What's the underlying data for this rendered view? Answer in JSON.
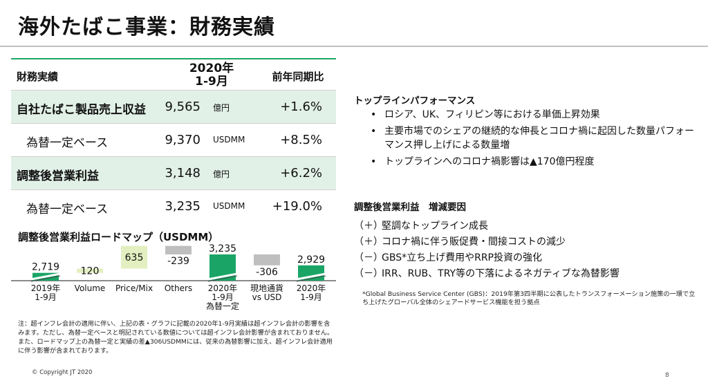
{
  "title": "海外たばこ事業：財務実績",
  "table": {
    "header": {
      "label": "財務実績",
      "period_line1": "2020年",
      "period_line2": "1-9月",
      "yoy": "前年同期比"
    },
    "rows": [
      {
        "label": "自社たばこ製品売上収益",
        "value": "9,565",
        "unit": "億円",
        "yoy": "+1.6%"
      },
      {
        "label": "為替一定ベース",
        "value": "9,370",
        "unit": "USDMM",
        "yoy": "+8.5%"
      },
      {
        "label": "調整後営業利益",
        "value": "3,148",
        "unit": "億円",
        "yoy": "+6.2%"
      },
      {
        "label": "為替一定ベース",
        "value": "3,235",
        "unit": "USDMM",
        "yoy": "+19.0%"
      }
    ]
  },
  "roadmap": {
    "title": "調整後営業利益ロードマップ（USDMM）",
    "colors": {
      "total": "#1aa566",
      "increase": "#e3efc0",
      "decrease": "#bfbfbf"
    }
  },
  "chart_data": {
    "type": "bar",
    "categories": [
      "2019年 1-9月",
      "Volume",
      "Price/Mix",
      "Others",
      "2020年 1-9月 為替一定",
      "現地通貨 vs USD",
      "2020年 1-9月"
    ],
    "category_lines": [
      [
        "2019年",
        "1-9月"
      ],
      [
        "Volume"
      ],
      [
        "Price/Mix"
      ],
      [
        "Others"
      ],
      [
        "2020年",
        "1-9月",
        "為替一定"
      ],
      [
        "現地通貨",
        "vs USD"
      ],
      [
        "2020年",
        "1-9月"
      ]
    ],
    "values": [
      2719,
      120,
      635,
      -239,
      3235,
      -306,
      2929
    ],
    "value_labels": [
      "2,719",
      "120",
      "635",
      "-239",
      "3,235",
      "-306",
      "2,929"
    ],
    "kinds": [
      "total",
      "increase",
      "increase",
      "decrease",
      "total",
      "decrease",
      "total"
    ],
    "title": "調整後営業利益ロードマップ（USDMM）"
  },
  "notes": [
    "注：超インフレ会計の適用に伴い、上記の表・グラフに記載の2020年1-9月実績は超インフレ会計の影響を含みます。ただし、為替一定ベースと明記されている数値については超インフレ会計影響が含まれておりません。",
    "また、ロードマップ上の為替一定と実績の差▲306USDMMには、従来の為替影響に加え、超インフレ会計適用に伴う影響が含まれております。"
  ],
  "copyright": "© Copyright JT 2020",
  "page_number": "8",
  "topline": {
    "heading": "トップラインパフォーマンス",
    "bullets": [
      "ロシア、UK、フィリピン等における単価上昇効果",
      "主要市場でのシェアの継続的な伸長とコロナ禍に起因した数量パフォーマンス押し上げによる数量増",
      "トップラインへのコロナ禍影響は▲170億円程度"
    ]
  },
  "factors": {
    "heading": "調整後営業利益　増減要因",
    "items": [
      {
        "sign": "（＋）",
        "text": "堅調なトップライン成長"
      },
      {
        "sign": "（＋）",
        "text": "コロナ禍に伴う販促費・間接コストの減少"
      },
      {
        "sign": "（－）",
        "text": "GBS*立ち上げ費用やRRP投資の強化"
      },
      {
        "sign": "（－）",
        "text": "IRR、RUB、TRY等の下落によるネガティブな為替影響"
      }
    ],
    "footnote": "*Global Business Service Center (GBS)：2019年第3四半期に公表したトランスフォーメーション施策の一環で立ち上げたグローバル全体のシェアードサービス機能を担う拠点"
  }
}
